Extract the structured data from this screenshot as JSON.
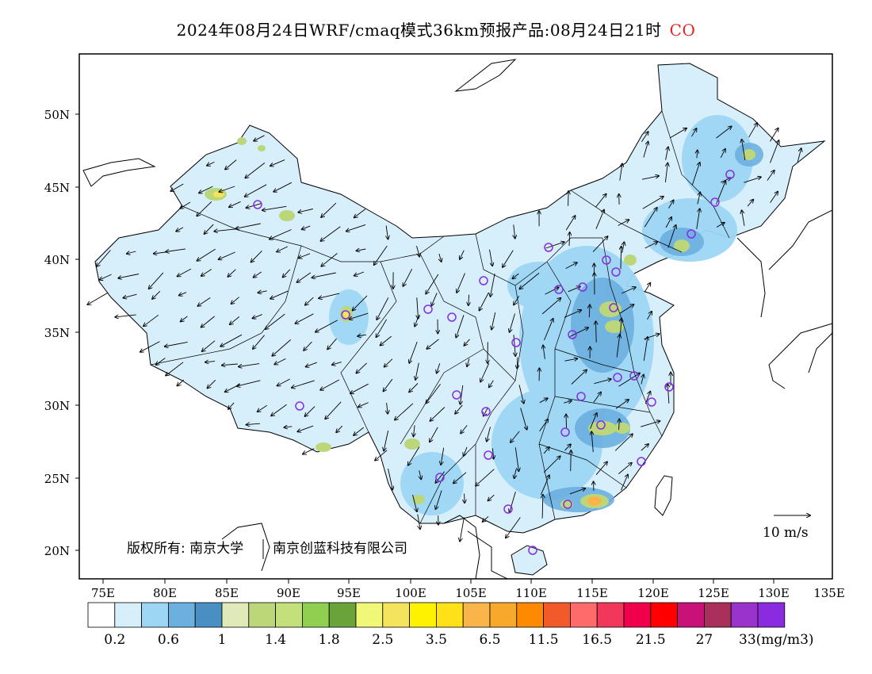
{
  "header": {
    "title": "2024年08月24日WRF/cmaq模式36km预报产品:08月24日21时",
    "species": "CO"
  },
  "map": {
    "lon_ticks": [
      "75E",
      "80E",
      "85E",
      "90E",
      "95E",
      "100E",
      "105E",
      "110E",
      "115E",
      "120E",
      "125E",
      "130E",
      "135E"
    ],
    "lat_ticks": [
      "20N",
      "25N",
      "30N",
      "35N",
      "40N",
      "45N",
      "50N"
    ],
    "credit_owner": "版权所有: 南京大学",
    "credit_company": "南京创蓝科技有限公司",
    "wind_scale_label": "10 m/s",
    "colors": {
      "land_low": "#d7eefb",
      "ocean": "#ffffff",
      "outline": "#000000",
      "station": "#8a2be2"
    }
  },
  "colorbar": {
    "colors": [
      "#ffffff",
      "#d7eefb",
      "#9dd6f5",
      "#6cb0e0",
      "#4a8fc4",
      "#dfeab8",
      "#bcd77a",
      "#c3e07a",
      "#90cf4f",
      "#6aa33a",
      "#f1f776",
      "#f4e35c",
      "#fff200",
      "#ffe11a",
      "#f9b54a",
      "#f8a82a",
      "#ff8a00",
      "#f25a2a",
      "#ff6b6b",
      "#f2385a",
      "#f0004a",
      "#ff0000",
      "#c8127a",
      "#a8305a",
      "#9933cc",
      "#8a2be2"
    ],
    "labels": [
      "0.2",
      "0.6",
      "1",
      "1.4",
      "1.8",
      "2.5",
      "3.5",
      "6.5",
      "11.5",
      "16.5",
      "21.5",
      "27",
      "33(mg/m3)"
    ]
  }
}
